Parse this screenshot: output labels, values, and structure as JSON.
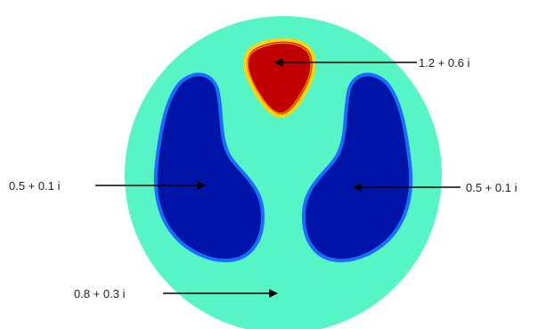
{
  "regions": [
    {
      "id": "background",
      "value": "0.8 + 0.3 i",
      "color": "#55f5c6"
    },
    {
      "id": "left-lung",
      "value": "0.5 + 0.1 i",
      "color": "#0015a8"
    },
    {
      "id": "right-lung",
      "value": "0.5 + 0.1 i",
      "color": "#0015a8"
    },
    {
      "id": "heart",
      "value": "1.2 + 0.6 i",
      "color": "#c00000"
    }
  ],
  "colors": {
    "lung_edge": "#1a6cff",
    "heart_edge": "#ffd400",
    "heart_edge_inner": "#ff7a00",
    "arrow": "#000000"
  }
}
